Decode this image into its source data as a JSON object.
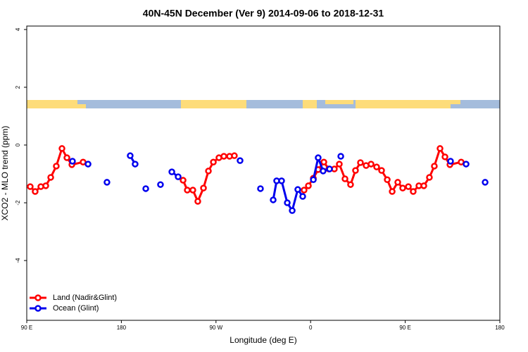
{
  "chart_data": {
    "type": "line",
    "title": "40N-45N December (Ver 9)   2014-09-06 to 2018-12-31",
    "x_label": "Longitude (deg E)",
    "y_label": "XCO2 - MLO trend (ppm)",
    "xlim": [
      90,
      540
    ],
    "xticks": [
      {
        "value": 90,
        "label": "90 E"
      },
      180,
      {
        "value": 270,
        "label": "90 W"
      },
      {
        "value": 360,
        "label": "0"
      },
      {
        "value": 450,
        "label": "90 E"
      },
      {
        "value": 540,
        "label": "180"
      }
    ],
    "ylim": [
      -6.07,
      4.12
    ],
    "yticks": [
      -4,
      -2,
      0,
      2,
      4
    ],
    "legend": "bottom-left",
    "series": [
      {
        "name": "Land (Nadir&Glint)",
        "color": "#ff0000",
        "x": [
          93.3,
          98,
          103.4,
          108.1,
          112.8,
          118.1,
          123.5,
          128.2,
          132.9,
          143.6,
          null,
          238.7,
          242.7,
          248,
          252.7,
          258.1,
          262.8,
          267.5,
          272.8,
          277.5,
          282.9,
          287.5,
          null,
          353.8,
          357.9,
          362.6,
          367.2,
          372.6,
          377.3,
          382.6,
          387.3,
          392.7,
          398,
          402.7,
          407.4,
          412.8,
          417.5,
          422.8,
          427.5,
          432.9,
          437.6,
          442.9,
          447.6,
          453,
          457.6,
          463,
          467.7,
          473,
          477.7,
          483.1,
          487.8,
          492.5,
          503.2
        ],
        "values": [
          -1.44,
          -1.61,
          -1.44,
          -1.41,
          -1.12,
          -0.73,
          -0.12,
          -0.44,
          -0.68,
          -0.59,
          null,
          -1.22,
          -1.56,
          -1.56,
          -1.95,
          -1.49,
          -0.9,
          -0.59,
          -0.44,
          -0.39,
          -0.39,
          -0.37,
          null,
          -1.56,
          -1.41,
          -1.15,
          -0.85,
          -0.59,
          -0.83,
          -0.83,
          -0.66,
          -1.17,
          -1.37,
          -0.88,
          -0.61,
          -0.71,
          -0.66,
          -0.76,
          -0.88,
          -1.2,
          -1.61,
          -1.29,
          -1.49,
          -1.44,
          -1.61,
          -1.41,
          -1.41,
          -1.12,
          -0.73,
          -0.12,
          -0.41,
          -0.68,
          -0.59
        ]
      },
      {
        "name": "Ocean (Glint)",
        "color": "#0000ee",
        "x": [
          133.5,
          null,
          148.3,
          null,
          166.3,
          null,
          188.4,
          193.1,
          null,
          203.2,
          null,
          217.2,
          null,
          228,
          234,
          null,
          292.9,
          null,
          312.3,
          null,
          324.4,
          327.7,
          332.4,
          337.8,
          342.5,
          347.8,
          352.5,
          null,
          362.6,
          367.2,
          371.9,
          378,
          null,
          388.7,
          null,
          493.1,
          null,
          507.9,
          null,
          526
        ],
        "values": [
          -0.56,
          null,
          -0.66,
          null,
          -1.29,
          null,
          -0.37,
          -0.66,
          null,
          -1.51,
          null,
          -1.37,
          null,
          -0.93,
          -1.1,
          null,
          -0.54,
          null,
          -1.51,
          null,
          -1.9,
          -1.24,
          -1.24,
          -2.0,
          -2.27,
          -1.54,
          -1.78,
          null,
          -1.2,
          -0.44,
          -0.9,
          -0.83,
          null,
          -0.39,
          null,
          -0.56,
          null,
          -0.66,
          null,
          -1.29
        ]
      }
    ]
  }
}
